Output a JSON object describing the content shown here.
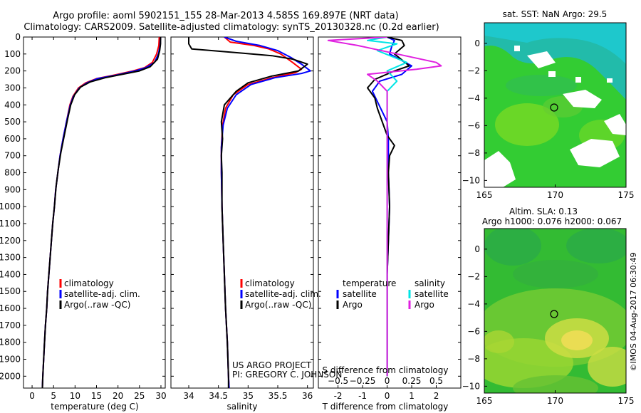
{
  "header": {
    "title_line1": "Argo profile: aoml 5902151_155 28-Mar-2013 4.585S 169.897E (NRT data)",
    "title_line2": "Climatology: CARS2009. Satellite-adjusted climatology: synTS_20130328.nc (0.2d earlier)"
  },
  "colors": {
    "climatology": "#ff0000",
    "satellite": "#0000ff",
    "argo": "#000000",
    "salinity_satellite": "#00e5e5",
    "salinity_argo": "#e020e0"
  },
  "credits": {
    "project": "US ARGO PROJECT",
    "pi": "PI: GREGORY C. JOHNSON",
    "stamp": "©IMOS 04-Aug-2017 06:30:49"
  },
  "chart_data": [
    {
      "type": "line",
      "id": "temperature",
      "xlabel": "temperature (deg C)",
      "ylabel": "",
      "xlim": [
        -2,
        31
      ],
      "ylim": [
        2070,
        0
      ],
      "xticks": [
        0,
        5,
        10,
        15,
        20,
        25,
        30
      ],
      "yticks": [
        0,
        100,
        200,
        300,
        400,
        500,
        600,
        700,
        800,
        900,
        1000,
        1100,
        1200,
        1300,
        1400,
        1500,
        1600,
        1700,
        1800,
        1900,
        2000
      ],
      "legend": [
        "climatology",
        "satellite-adj. clim.",
        "Argo(..raw -QC)"
      ],
      "series": [
        {
          "name": "climatology",
          "points": [
            [
              29.6,
              0
            ],
            [
              29.5,
              50
            ],
            [
              29.0,
              100
            ],
            [
              28.0,
              150
            ],
            [
              26.2,
              180
            ],
            [
              23.5,
              200
            ],
            [
              19,
              225
            ],
            [
              15,
              245
            ],
            [
              12.5,
              270
            ],
            [
              10.8,
              300
            ],
            [
              9.5,
              350
            ],
            [
              8.8,
              400
            ],
            [
              8.0,
              500
            ],
            [
              7.2,
              600
            ],
            [
              6.5,
              700
            ],
            [
              6.0,
              800
            ],
            [
              5.5,
              900
            ],
            [
              5.2,
              1000
            ],
            [
              4.8,
              1100
            ],
            [
              4.5,
              1200
            ],
            [
              4.2,
              1300
            ],
            [
              3.9,
              1400
            ],
            [
              3.6,
              1500
            ],
            [
              3.4,
              1600
            ],
            [
              3.1,
              1700
            ],
            [
              2.9,
              1800
            ],
            [
              2.7,
              1900
            ],
            [
              2.5,
              2000
            ],
            [
              2.4,
              2070
            ]
          ]
        },
        {
          "name": "satellite",
          "points": [
            [
              29.9,
              0
            ],
            [
              29.8,
              50
            ],
            [
              29.4,
              100
            ],
            [
              28.5,
              150
            ],
            [
              26.5,
              180
            ],
            [
              24,
              200
            ],
            [
              19.5,
              225
            ],
            [
              15.2,
              245
            ],
            [
              12.8,
              270
            ],
            [
              11.0,
              300
            ],
            [
              9.6,
              350
            ],
            [
              8.9,
              400
            ],
            [
              8.0,
              500
            ],
            [
              7.2,
              600
            ],
            [
              6.5,
              700
            ],
            [
              6.0,
              800
            ],
            [
              5.5,
              900
            ],
            [
              5.2,
              1000
            ],
            [
              4.8,
              1100
            ],
            [
              4.5,
              1200
            ],
            [
              4.2,
              1300
            ],
            [
              3.9,
              1400
            ],
            [
              3.6,
              1500
            ],
            [
              3.4,
              1600
            ],
            [
              3.1,
              1700
            ],
            [
              2.9,
              1800
            ],
            [
              2.7,
              1900
            ],
            [
              2.5,
              2000
            ],
            [
              2.4,
              2070
            ]
          ]
        },
        {
          "name": "argo",
          "points": [
            [
              29.9,
              0
            ],
            [
              29.9,
              40
            ],
            [
              29.7,
              80
            ],
            [
              29.2,
              130
            ],
            [
              27.5,
              175
            ],
            [
              25,
              200
            ],
            [
              21,
              220
            ],
            [
              17,
              240
            ],
            [
              13.5,
              265
            ],
            [
              11.3,
              295
            ],
            [
              9.9,
              340
            ],
            [
              9.0,
              400
            ],
            [
              8.3,
              480
            ],
            [
              7.5,
              580
            ],
            [
              6.7,
              680
            ],
            [
              6.1,
              780
            ],
            [
              5.6,
              880
            ],
            [
              5.2,
              1000
            ],
            [
              4.8,
              1100
            ],
            [
              4.5,
              1200
            ],
            [
              4.2,
              1300
            ],
            [
              3.9,
              1400
            ],
            [
              3.6,
              1500
            ],
            [
              3.4,
              1600
            ],
            [
              3.1,
              1700
            ],
            [
              2.9,
              1800
            ],
            [
              2.7,
              1900
            ],
            [
              2.5,
              2000
            ],
            [
              2.4,
              2070
            ]
          ]
        }
      ]
    },
    {
      "type": "line",
      "id": "salinity",
      "xlabel": "salinity",
      "xlim": [
        33.7,
        36.1
      ],
      "ylim": [
        2070,
        0
      ],
      "xticks": [
        34,
        34.5,
        35,
        35.5,
        36
      ],
      "legend": [
        "climatology",
        "satellite-adj. clim.",
        "Argo(..raw -QC)"
      ],
      "series": [
        {
          "name": "climatology",
          "points": [
            [
              34.6,
              0
            ],
            [
              34.7,
              30
            ],
            [
              35.1,
              50
            ],
            [
              35.35,
              70
            ],
            [
              35.55,
              100
            ],
            [
              35.75,
              150
            ],
            [
              35.9,
              190
            ],
            [
              35.8,
              210
            ],
            [
              35.4,
              240
            ],
            [
              35.0,
              280
            ],
            [
              34.75,
              340
            ],
            [
              34.62,
              420
            ],
            [
              34.57,
              520
            ],
            [
              34.55,
              650
            ],
            [
              34.55,
              800
            ],
            [
              34.56,
              1000
            ],
            [
              34.58,
              1200
            ],
            [
              34.6,
              1400
            ],
            [
              34.62,
              1600
            ],
            [
              34.65,
              1800
            ],
            [
              34.67,
              2000
            ],
            [
              34.68,
              2070
            ]
          ]
        },
        {
          "name": "satellite",
          "points": [
            [
              34.6,
              0
            ],
            [
              34.8,
              25
            ],
            [
              35.2,
              50
            ],
            [
              35.5,
              80
            ],
            [
              35.72,
              120
            ],
            [
              35.9,
              160
            ],
            [
              36.05,
              200
            ],
            [
              35.9,
              215
            ],
            [
              35.45,
              240
            ],
            [
              35.05,
              280
            ],
            [
              34.8,
              340
            ],
            [
              34.65,
              420
            ],
            [
              34.58,
              520
            ],
            [
              34.55,
              650
            ],
            [
              34.55,
              800
            ],
            [
              34.56,
              1000
            ],
            [
              34.58,
              1200
            ],
            [
              34.6,
              1400
            ],
            [
              34.62,
              1600
            ],
            [
              34.65,
              1800
            ],
            [
              34.67,
              2000
            ],
            [
              34.68,
              2070
            ]
          ]
        },
        {
          "name": "argo",
          "points": [
            [
              34.0,
              0
            ],
            [
              34.0,
              40
            ],
            [
              34.05,
              70
            ],
            [
              34.4,
              80
            ],
            [
              34.9,
              95
            ],
            [
              35.4,
              110
            ],
            [
              35.75,
              130
            ],
            [
              36.0,
              160
            ],
            [
              35.85,
              200
            ],
            [
              35.4,
              230
            ],
            [
              35.0,
              270
            ],
            [
              34.8,
              320
            ],
            [
              34.6,
              400
            ],
            [
              34.55,
              500
            ],
            [
              34.57,
              600
            ],
            [
              34.55,
              700
            ],
            [
              34.56,
              800
            ],
            [
              34.56,
              1000
            ],
            [
              34.58,
              1200
            ],
            [
              34.6,
              1400
            ],
            [
              34.62,
              1600
            ],
            [
              34.65,
              1800
            ],
            [
              34.67,
              2000
            ],
            [
              34.67,
              2070
            ]
          ]
        }
      ]
    },
    {
      "type": "line",
      "id": "differences",
      "xlabel": "T difference from climatology",
      "xlabel_top": "S difference from climatology",
      "xlim": [
        -2.8,
        3.0
      ],
      "ylim": [
        2070,
        0
      ],
      "xticks_T": [
        -2,
        -1,
        0,
        1,
        2
      ],
      "xticks_S": [
        -0.5,
        -0.25,
        0,
        0.25,
        0.5
      ],
      "legend_temperature_title": "temperature",
      "legend_salinity_title": "salinity",
      "legend_temperature": [
        "satellite",
        "Argo"
      ],
      "legend_salinity": [
        "satellite",
        "Argo"
      ],
      "series": [
        {
          "name": "T satellite",
          "points": [
            [
              0,
              0
            ],
            [
              0.3,
              20
            ],
            [
              0.2,
              50
            ],
            [
              0.1,
              100
            ],
            [
              1.0,
              170
            ],
            [
              0.6,
              220
            ],
            [
              -0.3,
              260
            ],
            [
              -0.6,
              320
            ],
            [
              -0.4,
              380
            ],
            [
              -0.2,
              440
            ],
            [
              0,
              500
            ],
            [
              0.05,
              600
            ],
            [
              0.05,
              800
            ],
            [
              0.1,
              1000
            ],
            [
              0.05,
              1200
            ],
            [
              0,
              1400
            ],
            [
              0,
              1600
            ],
            [
              0,
              1800
            ],
            [
              0,
              2000
            ]
          ]
        },
        {
          "name": "T argo",
          "points": [
            [
              0,
              0
            ],
            [
              0.6,
              20
            ],
            [
              0.7,
              50
            ],
            [
              0.3,
              100
            ],
            [
              0.9,
              170
            ],
            [
              0.3,
              200
            ],
            [
              -0.5,
              250
            ],
            [
              -0.8,
              300
            ],
            [
              -0.5,
              360
            ],
            [
              -0.4,
              420
            ],
            [
              -0.2,
              500
            ],
            [
              0,
              580
            ],
            [
              0.3,
              640
            ],
            [
              0.1,
              700
            ],
            [
              0.05,
              800
            ],
            [
              0.1,
              1000
            ],
            [
              0.05,
              1200
            ],
            [
              0,
              1400
            ],
            [
              0,
              1600
            ],
            [
              0,
              1800
            ],
            [
              0,
              2000
            ]
          ]
        },
        {
          "name": "S satellite",
          "points": [
            [
              0,
              0
            ],
            [
              -0.2,
              20
            ],
            [
              0.1,
              40
            ],
            [
              -0.1,
              80
            ],
            [
              0.2,
              150
            ],
            [
              0,
              200
            ],
            [
              0.1,
              260
            ],
            [
              0,
              320
            ],
            [
              0,
              500
            ],
            [
              0,
              800
            ],
            [
              0,
              1000
            ],
            [
              0,
              1200
            ],
            [
              0,
              1400
            ],
            [
              0,
              1600
            ],
            [
              0,
              1800
            ],
            [
              0,
              2000
            ]
          ]
        },
        {
          "name": "S argo",
          "points": [
            [
              0,
              0
            ],
            [
              -0.6,
              20
            ],
            [
              -0.3,
              50
            ],
            [
              0.5,
              150
            ],
            [
              0.55,
              170
            ],
            [
              0.3,
              190
            ],
            [
              -0.2,
              220
            ],
            [
              -0.1,
              260
            ],
            [
              0,
              320
            ],
            [
              0,
              500
            ],
            [
              0,
              800
            ],
            [
              0,
              1000
            ],
            [
              0,
              1200
            ],
            [
              0,
              1400
            ],
            [
              0,
              1600
            ],
            [
              0,
              1800
            ],
            [
              0,
              2000
            ]
          ]
        }
      ]
    },
    {
      "type": "heatmap",
      "id": "sst_map",
      "title": "sat. SST: NaN Argo: 29.5",
      "xlim": [
        165,
        175
      ],
      "ylim": [
        -10.5,
        1.5
      ],
      "xticks": [
        165,
        170,
        175
      ],
      "yticks": [
        0,
        -2,
        -4,
        -6,
        -8,
        -10
      ],
      "marker": [
        169.897,
        -4.585
      ]
    },
    {
      "type": "heatmap",
      "id": "sla_map",
      "title_line1": "Altim. SLA: 0.13",
      "title_line2": "Argo h1000: 0.076 h2000: 0.067",
      "xlim": [
        165,
        175
      ],
      "ylim": [
        -10.5,
        1.5
      ],
      "xticks": [
        165,
        170,
        175
      ],
      "yticks": [
        0,
        -2,
        -4,
        -6,
        -8,
        -10
      ],
      "marker": [
        169.897,
        -4.585
      ]
    }
  ]
}
